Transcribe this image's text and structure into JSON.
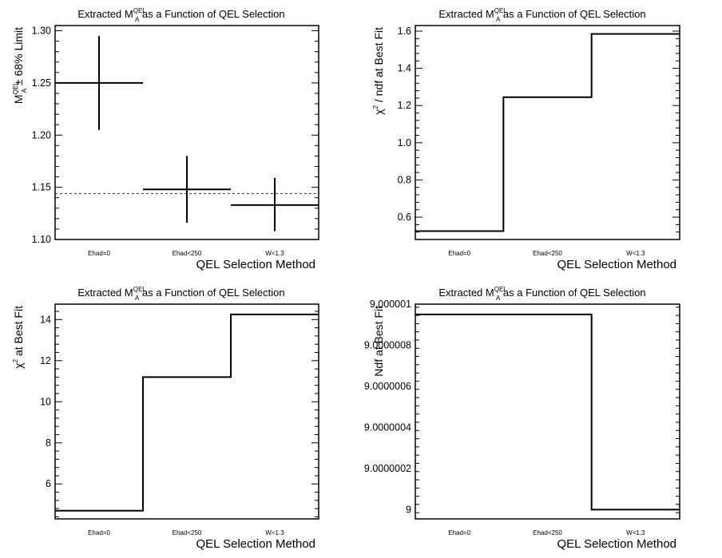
{
  "chart_data": [
    {
      "type": "scatter",
      "title": {
        "pre": "Extracted M",
        "sup": "QEL",
        "sub": "A",
        "post": " as a Function of QEL Selection"
      },
      "xlabel": "QEL Selection Method",
      "ylabel": {
        "pre": "M",
        "sup": "QEL",
        "sub": "A",
        "post": " ± 68% Limit"
      },
      "categories": [
        "Ehad=0",
        "Ehad<250",
        "W<1.3"
      ],
      "values": [
        1.25,
        1.148,
        1.133
      ],
      "err_low": [
        0.045,
        0.032,
        0.025
      ],
      "err_high": [
        0.045,
        0.032,
        0.026
      ],
      "reference_line": 1.144,
      "ylim": [
        1.1,
        1.305
      ],
      "yticks": [
        "1.10",
        "1.15",
        "1.20",
        "1.25",
        "1.30"
      ]
    },
    {
      "type": "step",
      "title": {
        "pre": "Extracted M",
        "sup": "QEL",
        "sub": "A",
        "post": " as a Function of QEL Selection"
      },
      "xlabel": "QEL Selection Method",
      "ylabel": {
        "pre": "χ",
        "sup": "2",
        "post": " / ndf at Best Fit"
      },
      "categories": [
        "Ehad=0",
        "Ehad<250",
        "W<1.3"
      ],
      "values": [
        0.525,
        1.245,
        1.585
      ],
      "ylim": [
        0.48,
        1.63
      ],
      "yticks": [
        "0.6",
        "0.8",
        "1.0",
        "1.2",
        "1.4",
        "1.6"
      ]
    },
    {
      "type": "step",
      "title": {
        "pre": "Extracted M",
        "sup": "QEL",
        "sub": "A",
        "post": " as a Function of QEL Selection"
      },
      "xlabel": "QEL Selection Method",
      "ylabel": {
        "pre": "χ",
        "sup": "2",
        "post": " at Best Fit"
      },
      "categories": [
        "Ehad=0",
        "Ehad<250",
        "W<1.3"
      ],
      "values": [
        4.7,
        11.2,
        14.25
      ],
      "ylim": [
        4.3,
        14.75
      ],
      "yticks": [
        "6",
        "8",
        "10",
        "12",
        "14"
      ]
    },
    {
      "type": "step",
      "title": {
        "pre": "Extracted M",
        "sup": "QEL",
        "sub": "A",
        "post": " as a Function of QEL Selection"
      },
      "xlabel": "QEL Selection Method",
      "ylabel": {
        "pre": "Ndf at Best Fit"
      },
      "categories": [
        "Ehad=0",
        "Ehad<250",
        "W<1.3"
      ],
      "values": [
        9.00000095,
        9.00000095,
        9.0
      ],
      "ylim": [
        8.999999955,
        9.000001
      ],
      "yticks": [
        "9",
        "9.0000002",
        "9.0000004",
        "9.0000006",
        "9.0000008",
        "9.000001"
      ]
    }
  ]
}
